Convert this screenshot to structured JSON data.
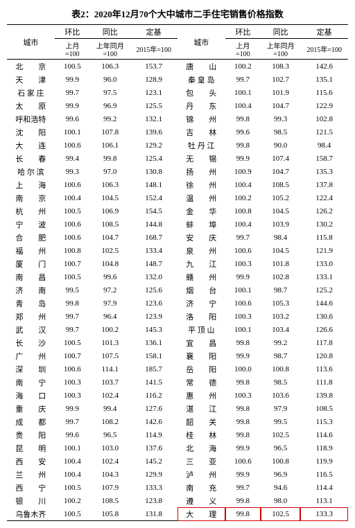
{
  "title": "表2：2020年12月70个大中城市二手住宅销售价格指数",
  "headers": {
    "city": "城市",
    "mom": "环比",
    "yoy": "同比",
    "base": "定基",
    "mom_sub": "上月\n=100",
    "yoy_sub": "上年同月\n=100",
    "base_sub": "2015年=100"
  },
  "left": [
    {
      "c": "北　　京",
      "m": "100.5",
      "y": "106.3",
      "b": "153.7"
    },
    {
      "c": "天　　津",
      "m": "99.9",
      "y": "96.0",
      "b": "128.9"
    },
    {
      "c": "石 家 庄",
      "m": "99.7",
      "y": "97.5",
      "b": "123.1"
    },
    {
      "c": "太　　原",
      "m": "99.9",
      "y": "96.9",
      "b": "125.5"
    },
    {
      "c": "呼和浩特",
      "m": "99.6",
      "y": "99.2",
      "b": "132.1"
    },
    {
      "c": "沈　　阳",
      "m": "100.1",
      "y": "107.8",
      "b": "139.6"
    },
    {
      "c": "大　　连",
      "m": "100.6",
      "y": "106.1",
      "b": "129.2"
    },
    {
      "c": "长　　春",
      "m": "99.4",
      "y": "99.8",
      "b": "125.4"
    },
    {
      "c": "哈 尔 滨",
      "m": "99.3",
      "y": "97.0",
      "b": "130.8"
    },
    {
      "c": "上　　海",
      "m": "100.6",
      "y": "106.3",
      "b": "148.1"
    },
    {
      "c": "南　　京",
      "m": "100.4",
      "y": "104.5",
      "b": "152.4"
    },
    {
      "c": "杭　　州",
      "m": "100.5",
      "y": "106.9",
      "b": "154.5"
    },
    {
      "c": "宁　　波",
      "m": "100.6",
      "y": "108.5",
      "b": "144.8"
    },
    {
      "c": "合　　肥",
      "m": "100.6",
      "y": "104.7",
      "b": "168.7"
    },
    {
      "c": "福　　州",
      "m": "100.8",
      "y": "102.5",
      "b": "133.4"
    },
    {
      "c": "厦　　门",
      "m": "100.7",
      "y": "104.8",
      "b": "148.7"
    },
    {
      "c": "南　　昌",
      "m": "100.5",
      "y": "99.6",
      "b": "132.0"
    },
    {
      "c": "济　　南",
      "m": "99.5",
      "y": "97.2",
      "b": "125.6"
    },
    {
      "c": "青　　岛",
      "m": "99.8",
      "y": "97.9",
      "b": "123.6"
    },
    {
      "c": "郑　　州",
      "m": "99.7",
      "y": "96.4",
      "b": "123.9"
    },
    {
      "c": "武　　汉",
      "m": "99.7",
      "y": "100.2",
      "b": "145.3"
    },
    {
      "c": "长　　沙",
      "m": "100.5",
      "y": "101.3",
      "b": "136.1"
    },
    {
      "c": "广　　州",
      "m": "100.7",
      "y": "107.5",
      "b": "158.1"
    },
    {
      "c": "深　　圳",
      "m": "100.6",
      "y": "114.1",
      "b": "185.7"
    },
    {
      "c": "南　　宁",
      "m": "100.3",
      "y": "103.7",
      "b": "141.5"
    },
    {
      "c": "海　　口",
      "m": "100.3",
      "y": "102.4",
      "b": "116.2"
    },
    {
      "c": "重　　庆",
      "m": "99.9",
      "y": "99.4",
      "b": "127.6"
    },
    {
      "c": "成　　都",
      "m": "99.7",
      "y": "108.2",
      "b": "142.6"
    },
    {
      "c": "贵　　阳",
      "m": "99.6",
      "y": "96.5",
      "b": "114.9"
    },
    {
      "c": "昆　　明",
      "m": "100.1",
      "y": "103.0",
      "b": "137.6"
    },
    {
      "c": "西　　安",
      "m": "100.4",
      "y": "102.4",
      "b": "145.2"
    },
    {
      "c": "兰　　州",
      "m": "100.4",
      "y": "104.3",
      "b": "129.9"
    },
    {
      "c": "西　　宁",
      "m": "100.5",
      "y": "107.9",
      "b": "133.3"
    },
    {
      "c": "银　　川",
      "m": "100.2",
      "y": "108.5",
      "b": "123.8"
    },
    {
      "c": "乌鲁木齐",
      "m": "100.5",
      "y": "105.8",
      "b": "131.8"
    }
  ],
  "right": [
    {
      "c": "唐　　山",
      "m": "100.2",
      "y": "108.3",
      "b": "142.6"
    },
    {
      "c": "秦 皇 岛",
      "m": "99.7",
      "y": "102.7",
      "b": "135.1"
    },
    {
      "c": "包　　头",
      "m": "100.1",
      "y": "101.9",
      "b": "115.6"
    },
    {
      "c": "丹　　东",
      "m": "100.4",
      "y": "104.7",
      "b": "122.9"
    },
    {
      "c": "锦　　州",
      "m": "99.8",
      "y": "99.3",
      "b": "102.8"
    },
    {
      "c": "吉　　林",
      "m": "99.6",
      "y": "98.5",
      "b": "121.5"
    },
    {
      "c": "牡 丹 江",
      "m": "99.8",
      "y": "90.0",
      "b": "98.4"
    },
    {
      "c": "无　　锡",
      "m": "99.9",
      "y": "107.4",
      "b": "158.7"
    },
    {
      "c": "扬　　州",
      "m": "100.9",
      "y": "104.7",
      "b": "135.3"
    },
    {
      "c": "徐　　州",
      "m": "100.4",
      "y": "108.5",
      "b": "137.8"
    },
    {
      "c": "温　　州",
      "m": "100.2",
      "y": "105.2",
      "b": "122.4"
    },
    {
      "c": "金　　华",
      "m": "100.8",
      "y": "104.5",
      "b": "126.2"
    },
    {
      "c": "蚌　　埠",
      "m": "100.4",
      "y": "103.9",
      "b": "130.2"
    },
    {
      "c": "安　　庆",
      "m": "99.7",
      "y": "98.4",
      "b": "115.8"
    },
    {
      "c": "泉　　州",
      "m": "100.6",
      "y": "104.5",
      "b": "121.9"
    },
    {
      "c": "九　　江",
      "m": "100.3",
      "y": "101.8",
      "b": "133.0"
    },
    {
      "c": "赣　　州",
      "m": "99.9",
      "y": "102.8",
      "b": "133.1"
    },
    {
      "c": "烟　　台",
      "m": "100.1",
      "y": "98.7",
      "b": "125.2"
    },
    {
      "c": "济　　宁",
      "m": "100.6",
      "y": "105.3",
      "b": "144.6"
    },
    {
      "c": "洛　　阳",
      "m": "100.3",
      "y": "103.2",
      "b": "130.6"
    },
    {
      "c": "平 顶 山",
      "m": "100.1",
      "y": "103.4",
      "b": "126.6"
    },
    {
      "c": "宜　　昌",
      "m": "99.8",
      "y": "99.2",
      "b": "117.8"
    },
    {
      "c": "襄　　阳",
      "m": "99.9",
      "y": "98.7",
      "b": "120.8"
    },
    {
      "c": "岳　　阳",
      "m": "100.0",
      "y": "100.8",
      "b": "113.6"
    },
    {
      "c": "常　　德",
      "m": "99.8",
      "y": "98.5",
      "b": "111.8"
    },
    {
      "c": "惠　　州",
      "m": "100.3",
      "y": "103.6",
      "b": "139.8"
    },
    {
      "c": "湛　　江",
      "m": "99.8",
      "y": "97.9",
      "b": "108.5"
    },
    {
      "c": "韶　　关",
      "m": "99.8",
      "y": "99.5",
      "b": "115.3"
    },
    {
      "c": "桂　　林",
      "m": "99.8",
      "y": "102.5",
      "b": "114.6"
    },
    {
      "c": "北　　海",
      "m": "99.9",
      "y": "96.5",
      "b": "118.9"
    },
    {
      "c": "三　　亚",
      "m": "100.6",
      "y": "100.8",
      "b": "119.9"
    },
    {
      "c": "泸　　州",
      "m": "99.9",
      "y": "96.9",
      "b": "116.5"
    },
    {
      "c": "南　　充",
      "m": "99.7",
      "y": "94.6",
      "b": "114.4"
    },
    {
      "c": "遵　　义",
      "m": "99.8",
      "y": "98.0",
      "b": "113.1"
    },
    {
      "c": "大　　理",
      "m": "99.8",
      "y": "102.5",
      "b": "133.3",
      "hl": true
    }
  ],
  "colors": {
    "highlight": "#d00000",
    "text": "#000000",
    "bg": "#ffffff"
  }
}
